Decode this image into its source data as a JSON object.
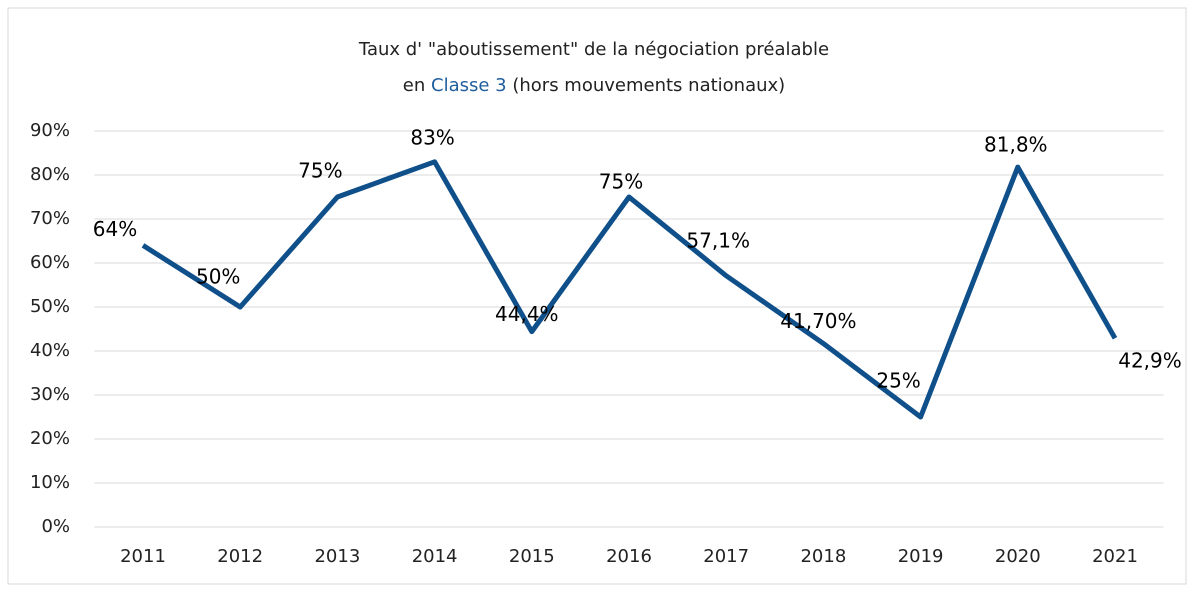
{
  "chart_data": {
    "type": "line",
    "title": [
      "Taux d' \"aboutissement\" de la négociation préalable",
      "en",
      "Classe 3",
      "(hors mouvements nationaux)"
    ],
    "title_highlight_color": "#1f5e9e",
    "categories": [
      "2011",
      "2012",
      "2013",
      "2014",
      "2015",
      "2016",
      "2017",
      "2018",
      "2019",
      "2020",
      "2021"
    ],
    "series": [
      {
        "name": "Taux",
        "color": "#0f4f8a",
        "values": [
          64,
          50,
          75,
          83,
          44.4,
          75,
          57.1,
          41.7,
          25,
          81.8,
          42.9
        ],
        "value_labels": [
          "64%",
          "50%",
          "75%",
          "83%",
          "44,4%",
          "75%",
          "57,1%",
          "41,70%",
          "25%",
          "81,8%",
          "42,9%"
        ]
      }
    ],
    "ylim": [
      0,
      90
    ],
    "yticks": [
      {
        "value": 0,
        "label": "0%"
      },
      {
        "value": 10,
        "label": "10%"
      },
      {
        "value": 20,
        "label": "20%"
      },
      {
        "value": 30,
        "label": "30%"
      },
      {
        "value": 40,
        "label": "40%"
      },
      {
        "value": 50,
        "label": "50%"
      },
      {
        "value": 60,
        "label": "60%"
      },
      {
        "value": 70,
        "label": "70%"
      },
      {
        "value": 80,
        "label": "80%"
      },
      {
        "value": 90,
        "label": "90%"
      }
    ],
    "grid": true
  }
}
